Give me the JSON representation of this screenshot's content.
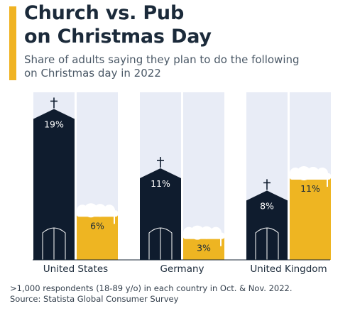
{
  "header": {
    "title_line1": "Church vs. Pub",
    "title_line2": "on Christmas Day",
    "subtitle_line1": "Share of adults saying they plan to do the following",
    "subtitle_line2": "on Christmas day in 2022"
  },
  "footer": {
    "note": ">1,000 respondents (18-89 y/o) in each country in Oct. & Nov. 2022.",
    "source": "Source: Statista Global Consumer Survey"
  },
  "colors": {
    "church": "#0f1c2e",
    "pub": "#eeb522",
    "track": "#e8ecf6",
    "foam": "#ffffff",
    "accent": "#f0b323"
  },
  "chart_data": {
    "type": "bar",
    "categories": [
      "United States",
      "Germany",
      "United Kingdom"
    ],
    "series": [
      {
        "key": "church",
        "icon": "church-icon",
        "values": [
          19,
          11,
          8
        ],
        "labels": [
          "19%",
          "11%",
          "8%"
        ]
      },
      {
        "key": "pub",
        "icon": "beer-glass-icon",
        "values": [
          6,
          3,
          11
        ],
        "labels": [
          "6%",
          "3%",
          "11%"
        ]
      }
    ],
    "ylim": [
      0,
      22
    ],
    "value_unit": "%"
  }
}
